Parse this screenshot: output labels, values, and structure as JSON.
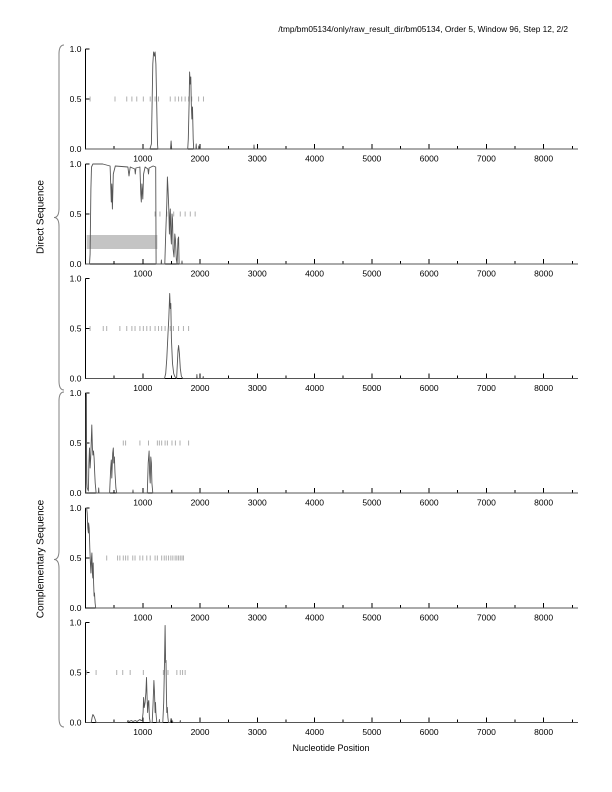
{
  "page": {
    "title": "/tmp/bm05134/only/raw_result_dir/bm05134, Order 5, Window 96, Step 12, 2/2"
  },
  "groups": [
    {
      "label": "Direct Sequence",
      "panels": [
        0,
        1,
        2
      ]
    },
    {
      "label": "Complementary Sequence",
      "panels": [
        3,
        4,
        5
      ]
    }
  ],
  "axes": {
    "xlabel": "Nucleotide Position",
    "x_tick_labels": [
      "1000",
      "2000",
      "3000",
      "4000",
      "5000",
      "6000",
      "7000",
      "8000"
    ],
    "x_major_step": 1000,
    "x_minor_step": 500,
    "x_max": 8600,
    "y_tick_labels": [
      "1.0",
      "0.5",
      "0.0"
    ],
    "ylim": [
      0,
      1
    ]
  },
  "colors": {
    "curve": "#555555",
    "axis": "#000000",
    "half_tick": "#b0b0b0",
    "band": "#c4c4c4",
    "brace": "#808080"
  },
  "chart_data": [
    {
      "type": "line",
      "name": "direct-frame-1",
      "xlim": [
        0,
        8600
      ],
      "ylim": [
        0,
        1
      ],
      "curve": [
        [
          0,
          0
        ],
        [
          1125,
          0
        ],
        [
          1150,
          0.05
        ],
        [
          1175,
          0.85
        ],
        [
          1190,
          0.97
        ],
        [
          1205,
          0.93
        ],
        [
          1215,
          0.97
        ],
        [
          1230,
          0.85
        ],
        [
          1245,
          0.4
        ],
        [
          1258,
          0.05
        ],
        [
          1265,
          0
        ],
        [
          1485,
          0
        ],
        [
          1495,
          0.08
        ],
        [
          1505,
          0
        ],
        [
          1785,
          0
        ],
        [
          1795,
          0.1
        ],
        [
          1810,
          0.5
        ],
        [
          1818,
          0.77
        ],
        [
          1828,
          0.65
        ],
        [
          1838,
          0.72
        ],
        [
          1848,
          0.45
        ],
        [
          1858,
          0.3
        ],
        [
          1868,
          0.42
        ],
        [
          1880,
          0.1
        ],
        [
          1890,
          0
        ],
        [
          1928,
          0
        ],
        [
          1933,
          0.05
        ],
        [
          1938,
          0
        ],
        [
          1973,
          0
        ],
        [
          1978,
          0.03
        ],
        [
          1983,
          0
        ],
        [
          2938,
          0
        ],
        [
          2943,
          0.04
        ],
        [
          2948,
          0
        ],
        [
          8600,
          0
        ]
      ],
      "half_tick_positions": [
        80,
        515,
        720,
        810,
        895,
        1010,
        1130,
        1215,
        1275,
        1480,
        1565,
        1625,
        1680,
        1740,
        1800,
        1855,
        1975,
        2060
      ],
      "band": null
    },
    {
      "type": "line",
      "name": "direct-frame-2",
      "xlim": [
        0,
        8600
      ],
      "ylim": [
        0,
        1
      ],
      "curve": [
        [
          0,
          0
        ],
        [
          70,
          0
        ],
        [
          80,
          0.1
        ],
        [
          95,
          0.75
        ],
        [
          105,
          0.97
        ],
        [
          130,
          1.0
        ],
        [
          300,
          1.0
        ],
        [
          430,
          0.98
        ],
        [
          450,
          0.62
        ],
        [
          460,
          0.8
        ],
        [
          470,
          0.55
        ],
        [
          485,
          0.9
        ],
        [
          520,
          0.98
        ],
        [
          740,
          0.97
        ],
        [
          760,
          0.88
        ],
        [
          780,
          0.97
        ],
        [
          860,
          0.95
        ],
        [
          870,
          0.9
        ],
        [
          880,
          0.96
        ],
        [
          950,
          0.97
        ],
        [
          965,
          0.7
        ],
        [
          975,
          0.62
        ],
        [
          985,
          0.8
        ],
        [
          1000,
          0.65
        ],
        [
          1015,
          0.9
        ],
        [
          1040,
          0.97
        ],
        [
          1090,
          0.95
        ],
        [
          1100,
          0.9
        ],
        [
          1110,
          0.96
        ],
        [
          1180,
          0.98
        ],
        [
          1225,
          0.97
        ],
        [
          1232,
          0
        ],
        [
          1320,
          0
        ],
        [
          1325,
          0.04
        ],
        [
          1330,
          0
        ],
        [
          1385,
          0
        ],
        [
          1400,
          0.3
        ],
        [
          1420,
          0.6
        ],
        [
          1430,
          0.87
        ],
        [
          1440,
          0.75
        ],
        [
          1455,
          0.55
        ],
        [
          1465,
          0.3
        ],
        [
          1475,
          0.5
        ],
        [
          1480,
          0.55
        ],
        [
          1490,
          0.3
        ],
        [
          1500,
          0.2
        ],
        [
          1510,
          0.5
        ],
        [
          1520,
          0.45
        ],
        [
          1530,
          0.15
        ],
        [
          1545,
          0.07
        ],
        [
          1560,
          0.3
        ],
        [
          1570,
          0.25
        ],
        [
          1585,
          0.05
        ],
        [
          1600,
          0
        ],
        [
          1615,
          0.25
        ],
        [
          1625,
          0.27
        ],
        [
          1635,
          0
        ],
        [
          1680,
          0
        ],
        [
          1685,
          0.03
        ],
        [
          1690,
          0
        ],
        [
          8600,
          0
        ]
      ],
      "half_tick_positions": [
        1215,
        1300,
        1420,
        1540,
        1655,
        1740,
        1830,
        1915
      ],
      "band": {
        "x0": 20,
        "x1": 1255,
        "y0": 0.15,
        "y1": 0.29
      }
    },
    {
      "type": "line",
      "name": "direct-frame-3",
      "xlim": [
        0,
        8600
      ],
      "ylim": [
        0,
        1
      ],
      "curve": [
        [
          0,
          0
        ],
        [
          1380,
          0
        ],
        [
          1400,
          0.05
        ],
        [
          1420,
          0.2
        ],
        [
          1440,
          0.45
        ],
        [
          1455,
          0.6
        ],
        [
          1470,
          0.85
        ],
        [
          1480,
          0.7
        ],
        [
          1490,
          0.75
        ],
        [
          1500,
          0.4
        ],
        [
          1520,
          0.15
        ],
        [
          1540,
          0.05
        ],
        [
          1560,
          0.02
        ],
        [
          1590,
          0
        ],
        [
          1600,
          0.1
        ],
        [
          1615,
          0.28
        ],
        [
          1625,
          0.33
        ],
        [
          1640,
          0.25
        ],
        [
          1655,
          0.1
        ],
        [
          1675,
          0.02
        ],
        [
          1700,
          0
        ],
        [
          1940,
          0
        ],
        [
          1945,
          0.04
        ],
        [
          1950,
          0
        ],
        [
          2050,
          0
        ],
        [
          2055,
          0.02
        ],
        [
          2060,
          0
        ],
        [
          8600,
          0
        ]
      ],
      "half_tick_positions": [
        80,
        310,
        370,
        600,
        720,
        810,
        865,
        950,
        1010,
        1070,
        1130,
        1215,
        1275,
        1330,
        1390,
        1480,
        1535,
        1625,
        1710,
        1800
      ],
      "band": null
    },
    {
      "type": "line",
      "name": "complementary-frame-1",
      "xlim": [
        0,
        8600
      ],
      "ylim": [
        0,
        1
      ],
      "curve": [
        [
          0,
          0
        ],
        [
          5,
          0
        ],
        [
          10,
          0.95
        ],
        [
          15,
          1.0
        ],
        [
          20,
          0.4
        ],
        [
          25,
          0.1
        ],
        [
          30,
          0.05
        ],
        [
          50,
          0.02
        ],
        [
          60,
          0.3
        ],
        [
          70,
          0.45
        ],
        [
          80,
          0.25
        ],
        [
          90,
          0.35
        ],
        [
          100,
          0.5
        ],
        [
          110,
          0.68
        ],
        [
          120,
          0.45
        ],
        [
          130,
          0.38
        ],
        [
          140,
          0.42
        ],
        [
          150,
          0.35
        ],
        [
          160,
          0.2
        ],
        [
          170,
          0.1
        ],
        [
          185,
          0
        ],
        [
          225,
          0
        ],
        [
          230,
          0.05
        ],
        [
          235,
          0
        ],
        [
          420,
          0
        ],
        [
          440,
          0.25
        ],
        [
          450,
          0.33
        ],
        [
          460,
          0.15
        ],
        [
          475,
          0.4
        ],
        [
          485,
          0.45
        ],
        [
          495,
          0.3
        ],
        [
          505,
          0.36
        ],
        [
          515,
          0.2
        ],
        [
          530,
          0.05
        ],
        [
          545,
          0
        ],
        [
          825,
          0
        ],
        [
          830,
          0.03
        ],
        [
          835,
          0
        ],
        [
          1080,
          0
        ],
        [
          1095,
          0.3
        ],
        [
          1110,
          0.42
        ],
        [
          1120,
          0.2
        ],
        [
          1130,
          0.1
        ],
        [
          1140,
          0.36
        ],
        [
          1150,
          0.3
        ],
        [
          1160,
          0.1
        ],
        [
          1175,
          0
        ],
        [
          1505,
          0
        ],
        [
          1510,
          0.03
        ],
        [
          1515,
          0
        ],
        [
          8600,
          0
        ]
      ],
      "half_tick_positions": [
        660,
        700,
        950,
        1100,
        1255,
        1290,
        1330,
        1390,
        1430,
        1510,
        1570,
        1650,
        1800
      ],
      "band": null
    },
    {
      "type": "line",
      "name": "complementary-frame-2",
      "xlim": [
        0,
        8600
      ],
      "ylim": [
        0,
        1
      ],
      "curve": [
        [
          0,
          1.0
        ],
        [
          20,
          1.0
        ],
        [
          30,
          0.95
        ],
        [
          40,
          0.8
        ],
        [
          50,
          0.75
        ],
        [
          55,
          0.85
        ],
        [
          65,
          0.8
        ],
        [
          75,
          0.6
        ],
        [
          85,
          0.45
        ],
        [
          95,
          0.35
        ],
        [
          105,
          0.5
        ],
        [
          112,
          0.55
        ],
        [
          120,
          0.35
        ],
        [
          128,
          0.3
        ],
        [
          135,
          0.45
        ],
        [
          142,
          0.25
        ],
        [
          150,
          0.12
        ],
        [
          158,
          0.15
        ],
        [
          168,
          0.05
        ],
        [
          178,
          0
        ],
        [
          8600,
          0
        ]
      ],
      "half_tick_positions": [
        370,
        560,
        600,
        660,
        700,
        740,
        825,
        865,
        950,
        1000,
        1070,
        1130,
        1215,
        1255,
        1330,
        1375,
        1410,
        1450,
        1490,
        1525,
        1565,
        1595,
        1625,
        1655,
        1685,
        1710
      ],
      "band": null
    },
    {
      "type": "line",
      "name": "complementary-frame-3",
      "xlim": [
        0,
        8600
      ],
      "ylim": [
        0,
        1
      ],
      "curve": [
        [
          0,
          0
        ],
        [
          100,
          0
        ],
        [
          115,
          0.05
        ],
        [
          130,
          0.08
        ],
        [
          150,
          0.06
        ],
        [
          170,
          0.03
        ],
        [
          185,
          0
        ],
        [
          730,
          0
        ],
        [
          740,
          0.02
        ],
        [
          760,
          0.01
        ],
        [
          800,
          0.02
        ],
        [
          830,
          0.01
        ],
        [
          870,
          0.02
        ],
        [
          900,
          0.01
        ],
        [
          950,
          0.03
        ],
        [
          970,
          0.02
        ],
        [
          990,
          0.02
        ],
        [
          1005,
          0.1
        ],
        [
          1015,
          0.25
        ],
        [
          1025,
          0.15
        ],
        [
          1040,
          0.2
        ],
        [
          1055,
          0.3
        ],
        [
          1065,
          0.45
        ],
        [
          1075,
          0.25
        ],
        [
          1085,
          0.1
        ],
        [
          1095,
          0.2
        ],
        [
          1105,
          0.22
        ],
        [
          1115,
          0.05
        ],
        [
          1130,
          0
        ],
        [
          1165,
          0
        ],
        [
          1180,
          0.2
        ],
        [
          1195,
          0.42
        ],
        [
          1205,
          0.3
        ],
        [
          1215,
          0.1
        ],
        [
          1222,
          0.2
        ],
        [
          1230,
          0.1
        ],
        [
          1245,
          0
        ],
        [
          1285,
          0
        ],
        [
          1290,
          0.03
        ],
        [
          1295,
          0
        ],
        [
          1350,
          0
        ],
        [
          1365,
          0.2
        ],
        [
          1380,
          0.6
        ],
        [
          1390,
          0.97
        ],
        [
          1398,
          0.6
        ],
        [
          1405,
          0.62
        ],
        [
          1412,
          0.3
        ],
        [
          1420,
          0.1
        ],
        [
          1428,
          0.15
        ],
        [
          1438,
          0.05
        ],
        [
          1450,
          0
        ],
        [
          1480,
          0
        ],
        [
          1495,
          0.04
        ],
        [
          1510,
          0.02
        ],
        [
          1530,
          0
        ],
        [
          1650,
          0
        ],
        [
          1655,
          0.02
        ],
        [
          1660,
          0
        ],
        [
          8600,
          0
        ]
      ],
      "half_tick_positions": [
        20,
        185,
        545,
        650,
        780,
        1010,
        1360,
        1440,
        1595,
        1655,
        1695,
        1740
      ],
      "band": null
    }
  ]
}
